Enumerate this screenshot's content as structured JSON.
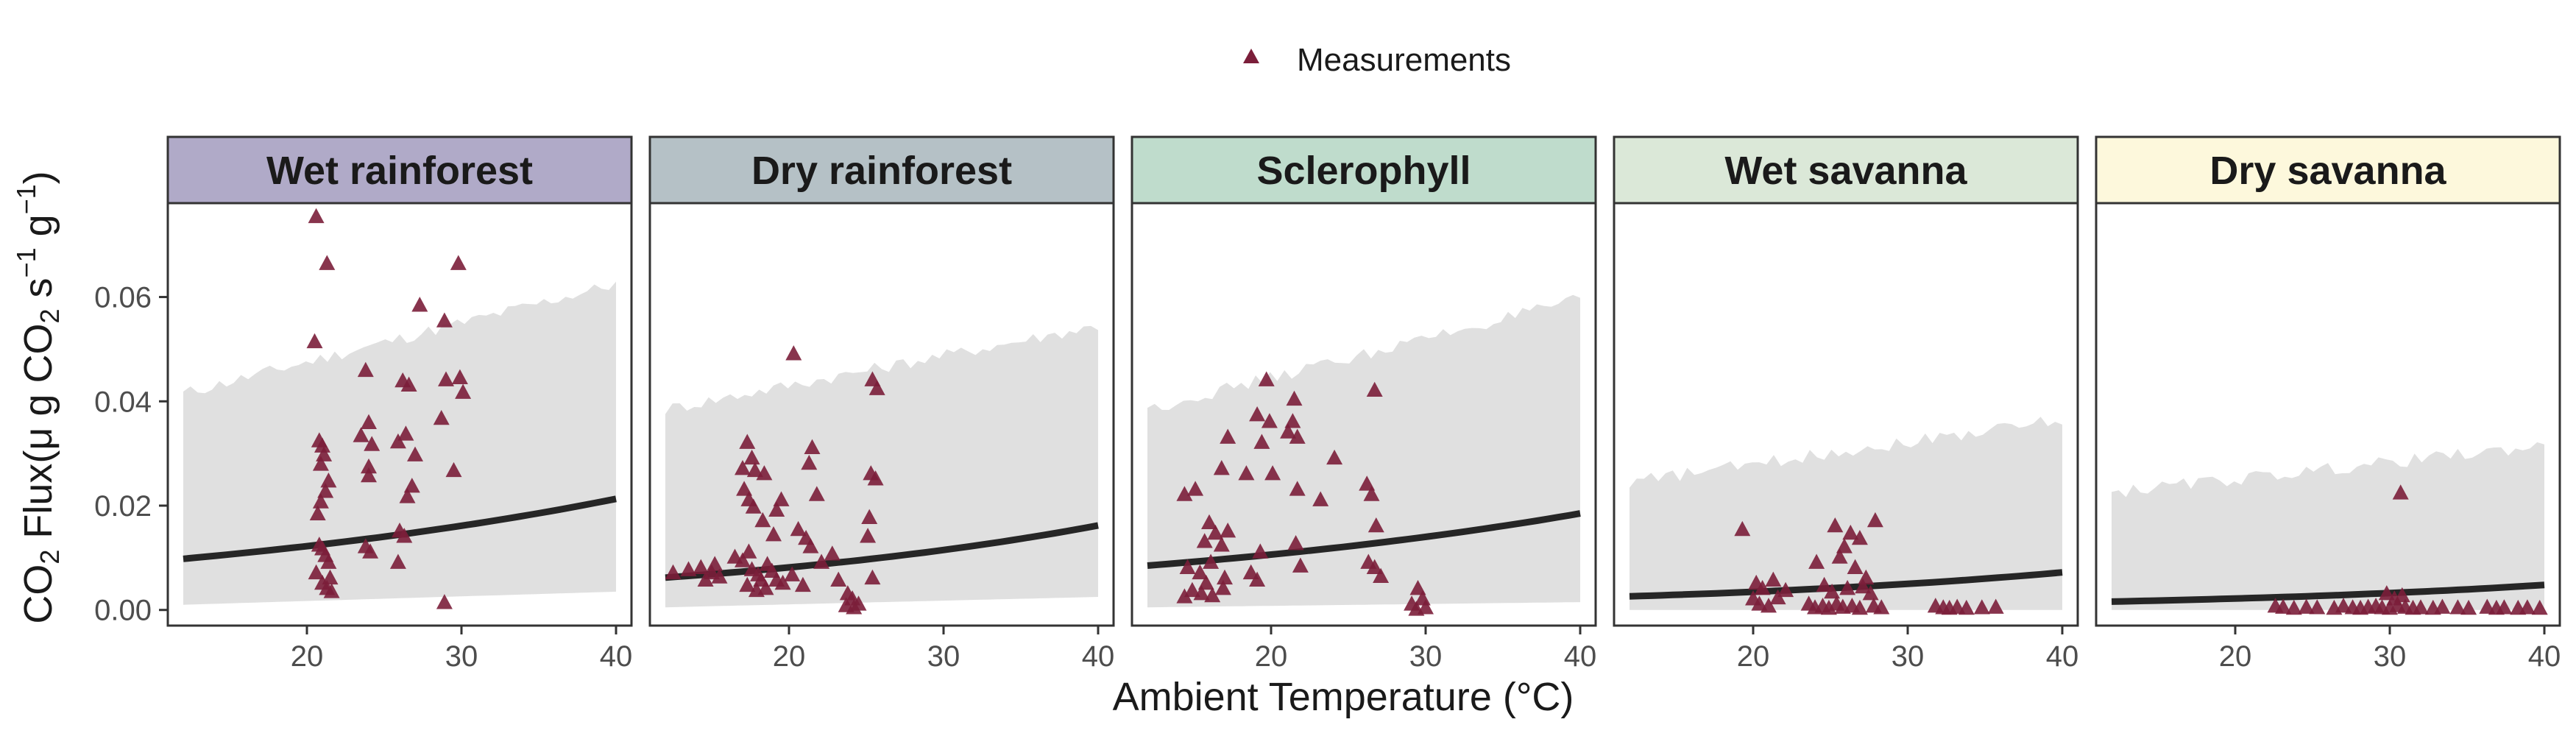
{
  "chart_data": {
    "type": "scatter",
    "legend": {
      "label": "Measurements",
      "position": "top"
    },
    "xlabel": "Ambient Temperature (°C)",
    "ylabel": {
      "prefix": "CO",
      "sub1": "2",
      "mid": " Flux(μ g CO",
      "sub2": "2",
      "mid2": " s",
      "sup1": "−1",
      "mid3": " g",
      "sup2": "−1",
      "suffix": ")"
    },
    "xlim": [
      11,
      41
    ],
    "ylim": [
      -0.003,
      0.078
    ],
    "x_ticks": [
      20,
      30,
      40
    ],
    "y_ticks": [
      0.0,
      0.02,
      0.04,
      0.06
    ],
    "y_tick_labels": [
      "0.00",
      "0.02",
      "0.04",
      "0.06"
    ],
    "colors": {
      "points": "#7b1e3a",
      "line": "#262626",
      "ribbon": "#e0e0e0",
      "panel_border": "#333333"
    },
    "panels": [
      {
        "name": "Wet rainforest",
        "strip_color": "#b0aac8",
        "trend": {
          "x": [
            12,
            40
          ],
          "y": [
            0.0098,
            0.0213
          ]
        },
        "ribbon": {
          "x": [
            12,
            40
          ],
          "lower": [
            0.001,
            0.0035
          ],
          "upper": [
            0.0415,
            0.0625
          ]
        },
        "points": [
          [
            20.6,
            0.0755
          ],
          [
            21.3,
            0.0665
          ],
          [
            20.5,
            0.0515
          ],
          [
            27.3,
            0.0585
          ],
          [
            29.8,
            0.0665
          ],
          [
            28.9,
            0.0555
          ],
          [
            20.8,
            0.0325
          ],
          [
            21.0,
            0.0315
          ],
          [
            21.1,
            0.0298
          ],
          [
            20.9,
            0.028
          ],
          [
            21.4,
            0.0248
          ],
          [
            21.2,
            0.0228
          ],
          [
            20.9,
            0.0208
          ],
          [
            20.7,
            0.0185
          ],
          [
            23.8,
            0.046
          ],
          [
            24.0,
            0.036
          ],
          [
            23.5,
            0.0335
          ],
          [
            24.2,
            0.0318
          ],
          [
            24.0,
            0.0275
          ],
          [
            24.0,
            0.0258
          ],
          [
            26.2,
            0.044
          ],
          [
            26.6,
            0.0432
          ],
          [
            26.4,
            0.0338
          ],
          [
            25.9,
            0.0323
          ],
          [
            27.0,
            0.0298
          ],
          [
            26.8,
            0.0238
          ],
          [
            26.5,
            0.0218
          ],
          [
            28.7,
            0.0368
          ],
          [
            29.0,
            0.0442
          ],
          [
            29.9,
            0.0446
          ],
          [
            30.1,
            0.0418
          ],
          [
            29.5,
            0.0268
          ],
          [
            20.8,
            0.0125
          ],
          [
            21.0,
            0.0118
          ],
          [
            21.2,
            0.0105
          ],
          [
            21.4,
            0.0092
          ],
          [
            20.6,
            0.0072
          ],
          [
            21.5,
            0.0062
          ],
          [
            21.0,
            0.0052
          ],
          [
            21.3,
            0.0042
          ],
          [
            21.6,
            0.0036
          ],
          [
            23.8,
            0.0122
          ],
          [
            24.1,
            0.0112
          ],
          [
            26.0,
            0.0152
          ],
          [
            26.3,
            0.0142
          ],
          [
            25.9,
            0.0092
          ],
          [
            28.9,
            0.0015
          ]
        ]
      },
      {
        "name": "Dry rainforest",
        "strip_color": "#b5c1c6",
        "trend": {
          "x": [
            12,
            40
          ],
          "y": [
            0.0062,
            0.0162
          ]
        },
        "ribbon": {
          "x": [
            12,
            40
          ],
          "lower": [
            0.0005,
            0.0025
          ],
          "upper": [
            0.0385,
            0.0545
          ]
        },
        "points": [
          [
            20.3,
            0.0492
          ],
          [
            25.4,
            0.0442
          ],
          [
            25.7,
            0.0425
          ],
          [
            17.3,
            0.0322
          ],
          [
            17.6,
            0.0292
          ],
          [
            17.0,
            0.0272
          ],
          [
            17.8,
            0.0268
          ],
          [
            18.4,
            0.0262
          ],
          [
            21.5,
            0.0312
          ],
          [
            21.3,
            0.0282
          ],
          [
            21.8,
            0.0222
          ],
          [
            25.3,
            0.0262
          ],
          [
            25.6,
            0.0252
          ],
          [
            17.1,
            0.0232
          ],
          [
            17.4,
            0.0212
          ],
          [
            17.7,
            0.0198
          ],
          [
            18.3,
            0.0172
          ],
          [
            19.2,
            0.0192
          ],
          [
            19.5,
            0.0212
          ],
          [
            19.0,
            0.0145
          ],
          [
            20.6,
            0.0155
          ],
          [
            21.1,
            0.0138
          ],
          [
            21.4,
            0.0122
          ],
          [
            25.2,
            0.0178
          ],
          [
            25.1,
            0.0142
          ],
          [
            12.5,
            0.0072
          ],
          [
            13.5,
            0.0078
          ],
          [
            14.3,
            0.0082
          ],
          [
            15.0,
            0.0072
          ],
          [
            15.5,
            0.0064
          ],
          [
            15.2,
            0.0088
          ],
          [
            14.6,
            0.0058
          ],
          [
            16.5,
            0.0102
          ],
          [
            17.0,
            0.0095
          ],
          [
            17.4,
            0.0112
          ],
          [
            17.6,
            0.0078
          ],
          [
            18.0,
            0.0068
          ],
          [
            18.2,
            0.0058
          ],
          [
            18.6,
            0.0088
          ],
          [
            18.9,
            0.0075
          ],
          [
            19.2,
            0.0058
          ],
          [
            17.3,
            0.0048
          ],
          [
            17.9,
            0.0038
          ],
          [
            18.5,
            0.0042
          ],
          [
            19.6,
            0.0052
          ],
          [
            20.2,
            0.0068
          ],
          [
            20.9,
            0.0048
          ],
          [
            22.1,
            0.0092
          ],
          [
            22.8,
            0.0108
          ],
          [
            23.2,
            0.0058
          ],
          [
            23.8,
            0.0032
          ],
          [
            24.1,
            0.0022
          ],
          [
            24.5,
            0.0012
          ],
          [
            23.7,
            0.0009
          ],
          [
            24.2,
            0.0005
          ],
          [
            25.4,
            0.0062
          ]
        ]
      },
      {
        "name": "Sclerophyll",
        "strip_color": "#bfdccc",
        "trend": {
          "x": [
            12,
            40
          ],
          "y": [
            0.0085,
            0.0185
          ]
        },
        "ribbon": {
          "x": [
            12,
            40
          ],
          "lower": [
            0.0005,
            0.0015
          ],
          "upper": [
            0.0385,
            0.0595
          ]
        },
        "points": [
          [
            19.7,
            0.0442
          ],
          [
            21.5,
            0.0405
          ],
          [
            19.1,
            0.0375
          ],
          [
            19.9,
            0.0362
          ],
          [
            21.4,
            0.0362
          ],
          [
            26.7,
            0.0422
          ],
          [
            17.2,
            0.0332
          ],
          [
            19.4,
            0.0322
          ],
          [
            21.1,
            0.0342
          ],
          [
            21.7,
            0.0332
          ],
          [
            24.1,
            0.0292
          ],
          [
            14.4,
            0.0222
          ],
          [
            15.1,
            0.0232
          ],
          [
            16.8,
            0.0272
          ],
          [
            18.4,
            0.0262
          ],
          [
            20.1,
            0.0262
          ],
          [
            21.7,
            0.0232
          ],
          [
            23.2,
            0.0212
          ],
          [
            26.2,
            0.0242
          ],
          [
            26.5,
            0.0222
          ],
          [
            26.8,
            0.0162
          ],
          [
            16.0,
            0.0168
          ],
          [
            16.4,
            0.0148
          ],
          [
            17.2,
            0.0152
          ],
          [
            15.7,
            0.0132
          ],
          [
            16.8,
            0.0125
          ],
          [
            19.3,
            0.0112
          ],
          [
            21.6,
            0.0128
          ],
          [
            21.9,
            0.0085
          ],
          [
            26.3,
            0.0092
          ],
          [
            26.7,
            0.0082
          ],
          [
            27.1,
            0.0065
          ],
          [
            14.6,
            0.0082
          ],
          [
            15.4,
            0.0072
          ],
          [
            16.1,
            0.0092
          ],
          [
            17.0,
            0.0062
          ],
          [
            18.7,
            0.0072
          ],
          [
            19.1,
            0.0058
          ],
          [
            15.8,
            0.0052
          ],
          [
            16.9,
            0.0042
          ],
          [
            14.9,
            0.0038
          ],
          [
            15.5,
            0.0032
          ],
          [
            16.2,
            0.0028
          ],
          [
            14.4,
            0.0026
          ],
          [
            29.5,
            0.0042
          ],
          [
            29.8,
            0.0022
          ],
          [
            29.1,
            0.0012
          ],
          [
            30.0,
            0.0005
          ],
          [
            29.4,
            0.0002
          ]
        ]
      },
      {
        "name": "Wet savanna",
        "strip_color": "#dbe8d8",
        "trend": {
          "x": [
            12,
            40
          ],
          "y": [
            0.0026,
            0.0072
          ]
        },
        "ribbon": {
          "x": [
            12,
            40
          ],
          "lower": [
            0.0,
            0.0
          ],
          "upper": [
            0.0245,
            0.0365
          ]
        },
        "points": [
          [
            19.3,
            0.0155
          ],
          [
            25.3,
            0.0162
          ],
          [
            26.3,
            0.0148
          ],
          [
            26.9,
            0.0138
          ],
          [
            27.9,
            0.0172
          ],
          [
            25.9,
            0.0122
          ],
          [
            24.1,
            0.0092
          ],
          [
            25.6,
            0.0102
          ],
          [
            26.6,
            0.0082
          ],
          [
            27.3,
            0.0062
          ],
          [
            20.2,
            0.0052
          ],
          [
            20.6,
            0.0042
          ],
          [
            21.3,
            0.0058
          ],
          [
            22.1,
            0.0038
          ],
          [
            24.6,
            0.0048
          ],
          [
            25.1,
            0.0035
          ],
          [
            26.1,
            0.0042
          ],
          [
            27.1,
            0.0045
          ],
          [
            27.6,
            0.0032
          ],
          [
            20.0,
            0.0022
          ],
          [
            20.4,
            0.0012
          ],
          [
            21.0,
            0.0008
          ],
          [
            21.6,
            0.0024
          ],
          [
            23.6,
            0.0012
          ],
          [
            24.0,
            0.0005
          ],
          [
            24.5,
            0.0008
          ],
          [
            24.9,
            0.0004
          ],
          [
            25.4,
            0.0012
          ],
          [
            25.8,
            0.0006
          ],
          [
            26.4,
            0.0008
          ],
          [
            26.9,
            0.0004
          ],
          [
            27.8,
            0.0008
          ],
          [
            28.3,
            0.0005
          ],
          [
            31.8,
            0.0008
          ],
          [
            32.3,
            0.0005
          ],
          [
            32.7,
            0.0004
          ],
          [
            33.2,
            0.0006
          ],
          [
            33.8,
            0.0004
          ],
          [
            34.8,
            0.0005
          ],
          [
            35.7,
            0.0006
          ]
        ]
      },
      {
        "name": "Dry savanna",
        "strip_color": "#fdf8dc",
        "trend": {
          "x": [
            12,
            40
          ],
          "y": [
            0.0016,
            0.0048
          ]
        },
        "ribbon": {
          "x": [
            12,
            40
          ],
          "lower": [
            0.0,
            0.0
          ],
          "upper": [
            0.0225,
            0.0315
          ]
        },
        "points": [
          [
            30.7,
            0.0225
          ],
          [
            29.8,
            0.0032
          ],
          [
            30.3,
            0.0022
          ],
          [
            30.8,
            0.0028
          ],
          [
            22.6,
            0.0008
          ],
          [
            23.1,
            0.0006
          ],
          [
            23.8,
            0.0004
          ],
          [
            24.6,
            0.0006
          ],
          [
            25.3,
            0.0005
          ],
          [
            26.4,
            0.0004
          ],
          [
            27.0,
            0.0008
          ],
          [
            27.6,
            0.0005
          ],
          [
            28.1,
            0.0004
          ],
          [
            28.6,
            0.0006
          ],
          [
            29.1,
            0.0008
          ],
          [
            29.5,
            0.0005
          ],
          [
            30.0,
            0.0004
          ],
          [
            30.5,
            0.0009
          ],
          [
            31.0,
            0.0006
          ],
          [
            31.5,
            0.0004
          ],
          [
            32.0,
            0.0005
          ],
          [
            32.8,
            0.0004
          ],
          [
            33.4,
            0.0006
          ],
          [
            34.4,
            0.0005
          ],
          [
            35.1,
            0.0004
          ],
          [
            36.3,
            0.0006
          ],
          [
            36.9,
            0.0004
          ],
          [
            37.4,
            0.0005
          ],
          [
            38.3,
            0.0004
          ],
          [
            38.9,
            0.0005
          ],
          [
            39.7,
            0.0004
          ]
        ]
      }
    ]
  }
}
